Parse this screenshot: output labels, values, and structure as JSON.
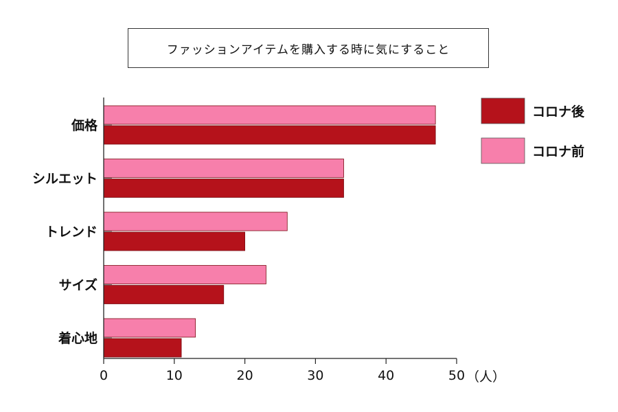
{
  "chart_data": {
    "type": "bar",
    "orientation": "horizontal",
    "title": "ファッションアイテムを購入する時に気にすること",
    "categories": [
      "価格",
      "シルエット",
      "トレンド",
      "サイズ",
      "着心地"
    ],
    "series": [
      {
        "name": "コロナ前",
        "values": [
          47,
          34,
          26,
          23,
          13
        ],
        "color": "#f77fab"
      },
      {
        "name": "コロナ後",
        "values": [
          47,
          34,
          20,
          17,
          11
        ],
        "color": "#b5121b"
      }
    ],
    "xlim": [
      0,
      50
    ],
    "xticks": [
      "0",
      "10",
      "20",
      "30",
      "40",
      "50"
    ],
    "unit": "（人）",
    "legend": {
      "placement": "top-right",
      "order": [
        "コロナ後",
        "コロナ前"
      ]
    },
    "grid": false
  }
}
